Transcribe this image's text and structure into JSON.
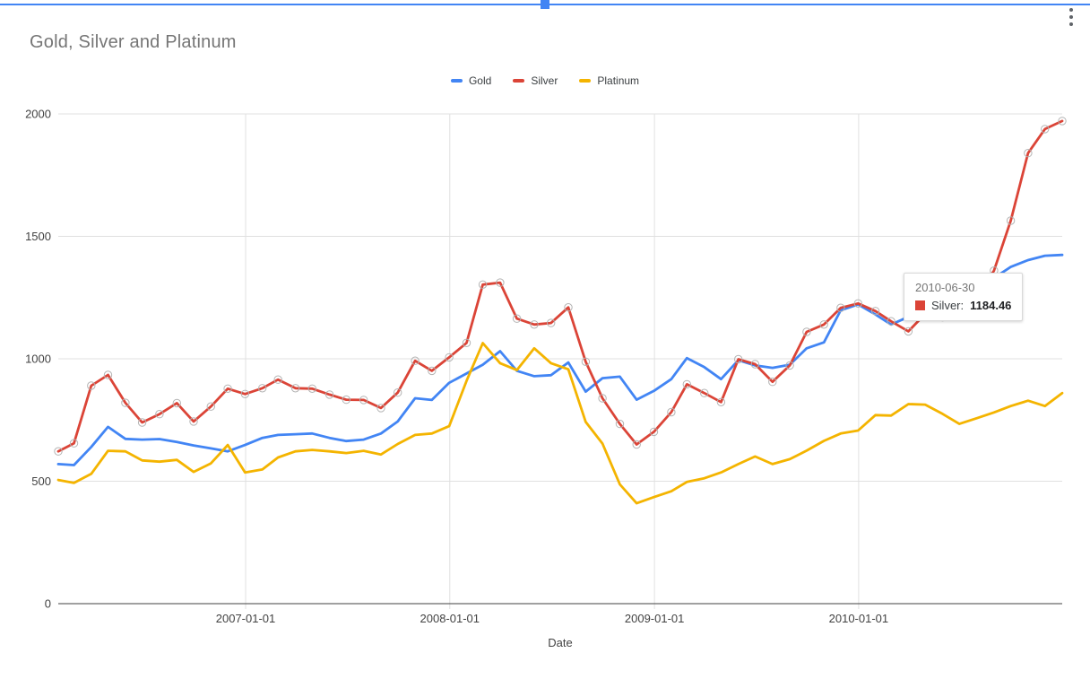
{
  "page": {
    "selection_color": "#4285f4"
  },
  "chart": {
    "title": "Gold, Silver and Platinum",
    "legend": [
      {
        "label": "Gold",
        "color": "#4285f4"
      },
      {
        "label": "Silver",
        "color": "#db4437"
      },
      {
        "label": "Platinum",
        "color": "#f4b400"
      }
    ],
    "tooltip": {
      "date": "2010-06-30",
      "series_label": "Silver:",
      "value": "1184.46",
      "swatch_color": "#db4437"
    }
  },
  "chart_data": {
    "type": "line",
    "title": "Gold, Silver and Platinum",
    "xlabel": "Date",
    "ylabel": "",
    "ylim": [
      0,
      2000
    ],
    "y_ticks": [
      0,
      500,
      1000,
      1500,
      2000
    ],
    "x_ticks": [
      "2007-01-01",
      "2008-01-01",
      "2009-01-01",
      "2010-01-01"
    ],
    "grid": true,
    "legend_position": "top",
    "x": [
      "2006-01-31",
      "2006-02-28",
      "2006-03-31",
      "2006-04-30",
      "2006-05-31",
      "2006-06-30",
      "2006-07-31",
      "2006-08-31",
      "2006-09-30",
      "2006-10-31",
      "2006-11-30",
      "2006-12-31",
      "2007-01-31",
      "2007-02-28",
      "2007-03-31",
      "2007-04-30",
      "2007-05-31",
      "2007-06-30",
      "2007-07-31",
      "2007-08-31",
      "2007-09-30",
      "2007-10-31",
      "2007-11-30",
      "2007-12-31",
      "2008-01-31",
      "2008-02-29",
      "2008-03-31",
      "2008-04-30",
      "2008-05-31",
      "2008-06-30",
      "2008-07-31",
      "2008-08-31",
      "2008-09-30",
      "2008-10-31",
      "2008-11-30",
      "2008-12-31",
      "2009-01-31",
      "2009-02-28",
      "2009-03-31",
      "2009-04-30",
      "2009-05-31",
      "2009-06-30",
      "2009-07-31",
      "2009-08-31",
      "2009-09-30",
      "2009-10-31",
      "2009-11-30",
      "2009-12-31",
      "2010-01-31",
      "2010-02-28",
      "2010-03-31",
      "2010-04-30",
      "2010-05-31",
      "2010-06-30",
      "2010-07-31",
      "2010-08-31",
      "2010-09-30",
      "2010-10-31",
      "2010-11-30",
      "2010-12-31"
    ],
    "series": [
      {
        "name": "Gold",
        "color": "#4285f4",
        "markers": false,
        "values": [
          570,
          566,
          640,
          722,
          673,
          670,
          672,
          660,
          646,
          634,
          622,
          648,
          677,
          689,
          692,
          695,
          677,
          664,
          670,
          695,
          744,
          839,
          832,
          902,
          940,
          976,
          1031,
          951,
          929,
          933,
          985,
          866,
          921,
          927,
          833,
          869,
          917,
          1003,
          966,
          917,
          994,
          973,
          963,
          976,
          1043,
          1067,
          1198,
          1222,
          1181,
          1140,
          1171,
          1185,
          1205,
          1230,
          1270,
          1330,
          1375,
          1403,
          1421,
          1424
        ]
      },
      {
        "name": "Silver",
        "color": "#db4437",
        "markers": true,
        "values": [
          622,
          655,
          890,
          934,
          820,
          740,
          774,
          819,
          744,
          805,
          878,
          856,
          880,
          915,
          880,
          878,
          854,
          833,
          832,
          799,
          862,
          992,
          951,
          1006,
          1065,
          1303,
          1311,
          1164,
          1140,
          1146,
          1210,
          988,
          839,
          734,
          650,
          702,
          782,
          896,
          860,
          823,
          998,
          978,
          906,
          973,
          1110,
          1140,
          1208,
          1226,
          1195,
          1153,
          1112,
          1183,
          1170,
          1184.46,
          1250,
          1360,
          1564,
          1840,
          1938,
          1971
        ]
      },
      {
        "name": "Platinum",
        "color": "#f4b400",
        "markers": false,
        "values": [
          505,
          493,
          530,
          624,
          622,
          585,
          580,
          587,
          538,
          573,
          648,
          536,
          548,
          597,
          622,
          628,
          622,
          615,
          624,
          609,
          652,
          689,
          695,
          725,
          910,
          1064,
          982,
          954,
          1043,
          982,
          957,
          742,
          654,
          487,
          410,
          435,
          459,
          497,
          512,
          536,
          570,
          601,
          570,
          590,
          625,
          665,
          695,
          707,
          770,
          768,
          815,
          813,
          775,
          734,
          757,
          781,
          807,
          829,
          807,
          860
        ]
      }
    ],
    "highlighted_point": {
      "series": "Silver",
      "date": "2010-06-30",
      "value": 1184.46
    }
  }
}
